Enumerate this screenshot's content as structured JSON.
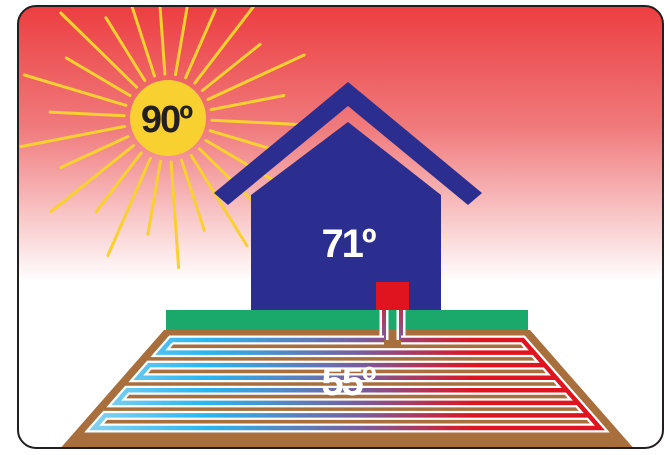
{
  "labels": {
    "sun_temp": "90º",
    "house_temp": "71º",
    "ground_temp": "55º"
  },
  "colors": {
    "sky_top": "#ec3b3e",
    "sky_bottom": "#ffffff",
    "sun_fill": "#f8d131",
    "sun_ray": "#f8d131",
    "house": "#2b2e8e",
    "heat_pump": "#e0141e",
    "grass": "#1aa86b",
    "soil": "#a86e3c",
    "pipe_cold": "#29b6ef",
    "pipe_hot": "#e0141e",
    "pipe_outline": "#ffffff",
    "text_dark": "#231f20",
    "text_light": "#ffffff",
    "border": "#231f20"
  }
}
